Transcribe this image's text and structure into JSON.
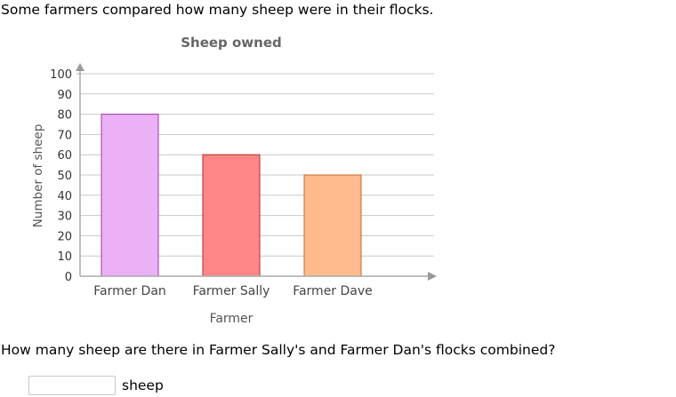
{
  "intro": "Some farmers compared how many sheep were in their flocks.",
  "question": "How many sheep are there in Farmer Sally's and Farmer Dan's flocks combined?",
  "answer": {
    "value": "",
    "unit": "sheep"
  },
  "chart_data": {
    "type": "bar",
    "title": "Sheep owned",
    "xlabel": "Farmer",
    "ylabel": "Number of sheep",
    "categories": [
      "Farmer Dan",
      "Farmer Sally",
      "Farmer Dave"
    ],
    "values": [
      80,
      60,
      50
    ],
    "colors": [
      "#ebb0f5",
      "#ff8787",
      "#ffbb8d"
    ],
    "bar_stroke_colors": [
      "#9c3da6",
      "#b52a2a",
      "#c8652b"
    ],
    "ylim": [
      0,
      100
    ],
    "yticks": [
      0,
      10,
      20,
      30,
      40,
      50,
      60,
      70,
      80,
      90,
      100
    ],
    "grid": true,
    "legend": "none"
  }
}
